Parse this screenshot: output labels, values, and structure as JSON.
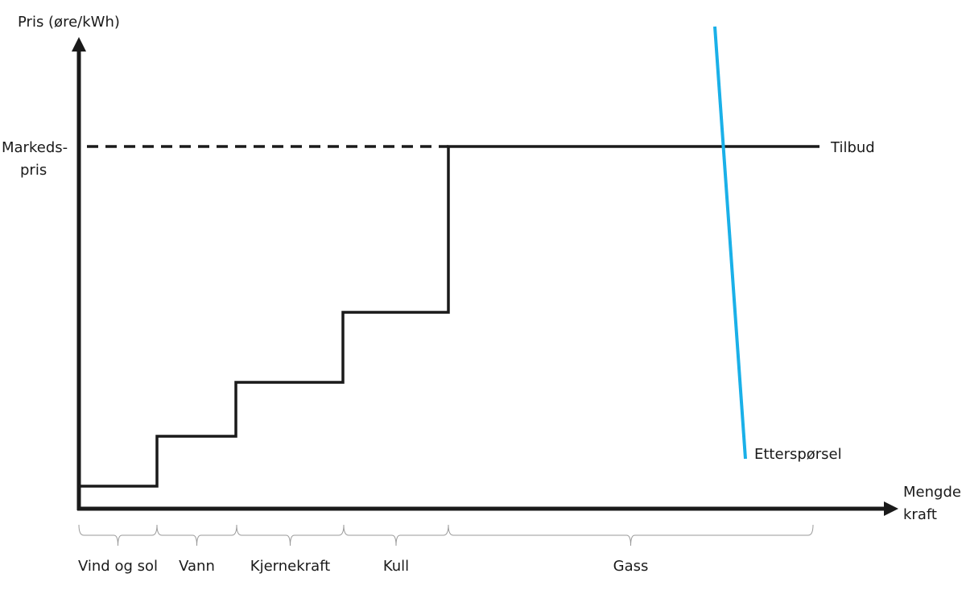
{
  "y_axis_label": "Pris (øre/kWh)",
  "x_axis_label": [
    "Mengde",
    "kraft"
  ],
  "market_price_label": [
    "Markeds-",
    "pris"
  ],
  "supply_label": "Tilbud",
  "demand_label": "Etterspørsel",
  "segments": [
    "Vind og sol",
    "Vann",
    "Kjernekraft",
    "Kull",
    "Gass"
  ]
}
